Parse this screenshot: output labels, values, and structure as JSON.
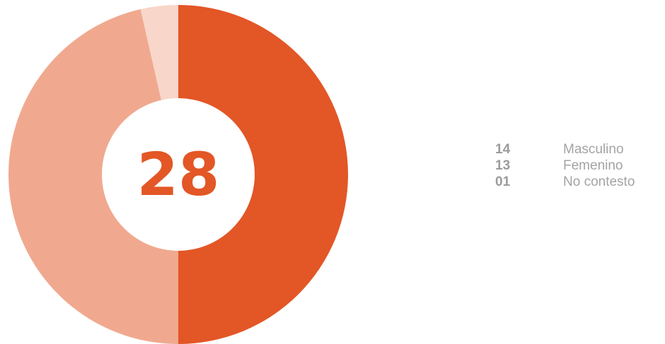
{
  "chart_data": {
    "type": "pie",
    "total_label": "28",
    "slices": [
      {
        "label": "Masculino",
        "count_label": "14",
        "value": 14,
        "color": "#e35626"
      },
      {
        "label": "Femenino",
        "count_label": "13",
        "value": 13,
        "color": "#f0a98f"
      },
      {
        "label": "No contesto",
        "count_label": "01",
        "value": 1,
        "color": "#f8d6ca"
      }
    ],
    "legend_position": "right"
  },
  "colors": {
    "accent": "#e35626",
    "legend_text": "#a3a3a3"
  }
}
